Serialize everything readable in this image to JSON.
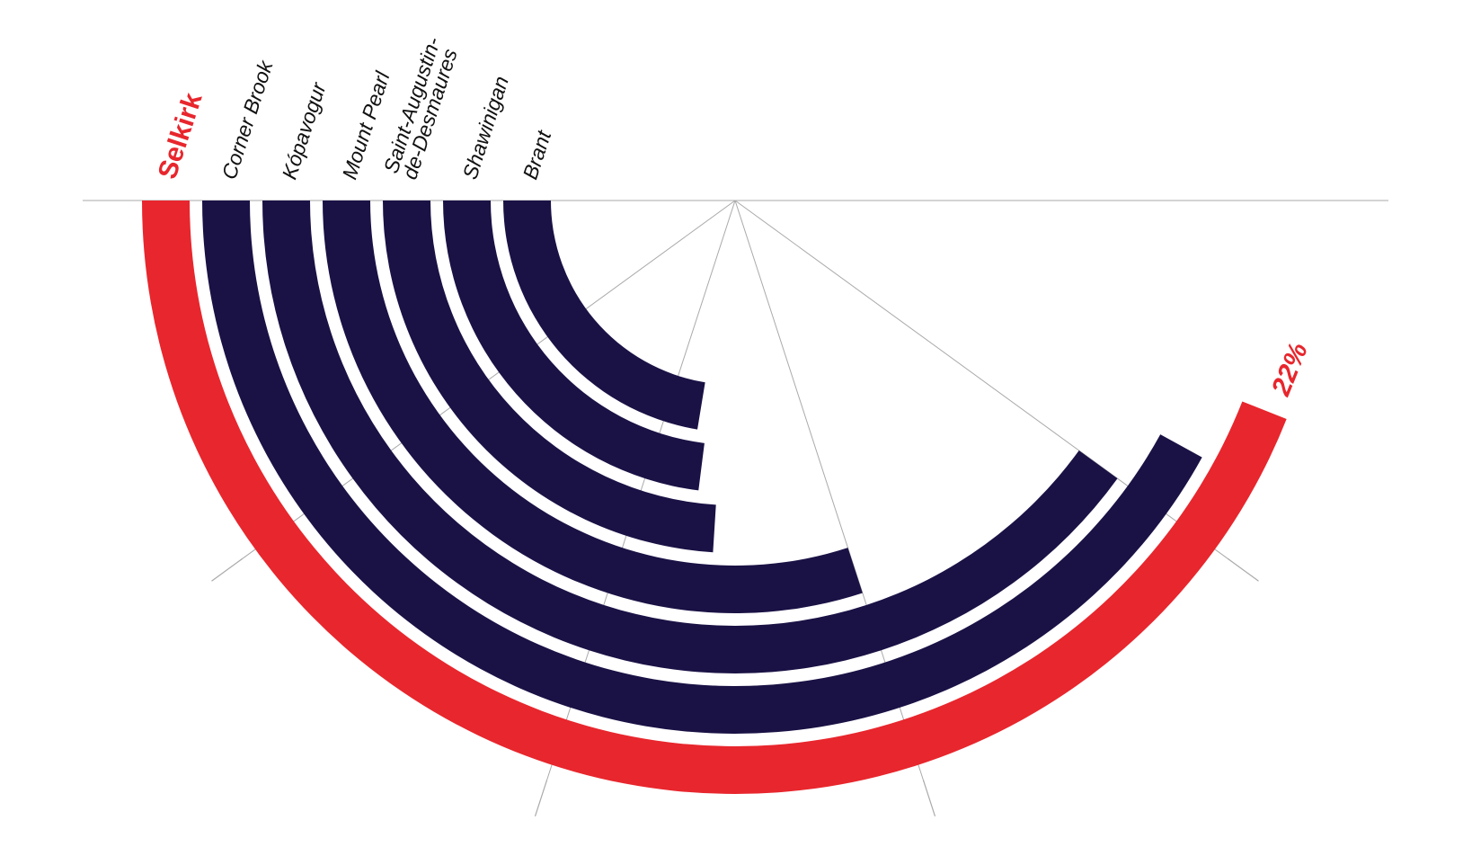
{
  "chart_data": {
    "type": "radial-bar",
    "unit_label": "(%)",
    "value_label": "22%",
    "ylim": [
      0,
      25
    ],
    "ticks": [
      "0",
      "5",
      "10",
      "15",
      "20",
      "25"
    ],
    "categories": [
      "Selkirk",
      "Corner Brook",
      "Kópavogur",
      "Mount Pearl",
      "Saint-Augustin-|de-Desmaures",
      "Shawinigan",
      "Brant"
    ],
    "values": [
      22,
      21,
      20,
      15,
      12,
      11.5,
      11.2
    ],
    "highlight_index": 0,
    "colors": {
      "highlight": "#e8262d",
      "default": "#1a1245",
      "grid": "#aaaaaa"
    }
  }
}
